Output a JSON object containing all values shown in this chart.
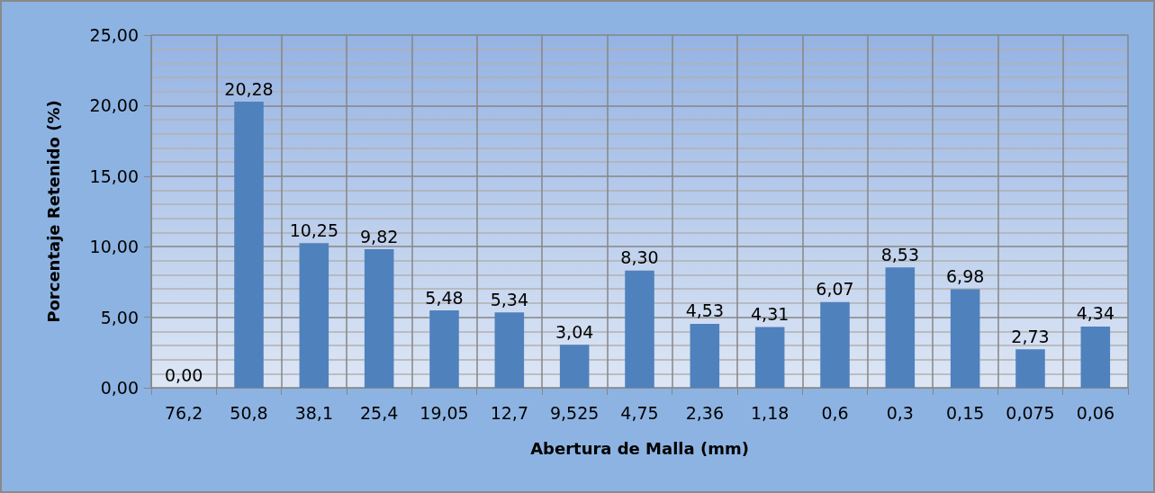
{
  "chart_data": {
    "type": "bar",
    "xlabel": "Abertura de Malla (mm)",
    "ylabel": "Porcentaje Retenido (%)",
    "categories": [
      "76,2",
      "50,8",
      "38,1",
      "25,4",
      "19,05",
      "12,7",
      "9,525",
      "4,75",
      "2,36",
      "1,18",
      "0,6",
      "0,3",
      "0,15",
      "0,075",
      "0,06"
    ],
    "values": [
      0,
      20.28,
      10.25,
      9.82,
      5.48,
      5.34,
      3.04,
      8.3,
      4.53,
      4.31,
      6.07,
      8.53,
      6.98,
      2.73,
      4.34
    ],
    "value_labels": [
      "0,00",
      "20,28",
      "10,25",
      "9,82",
      "5,48",
      "5,34",
      "3,04",
      "8,30",
      "4,53",
      "4,31",
      "6,07",
      "8,53",
      "6,98",
      "2,73",
      "4,34"
    ],
    "color": "#4f81bd",
    "ylim": [
      0,
      25
    ],
    "yticks": [
      {
        "value": 0,
        "label": "0,00"
      },
      {
        "value": 5,
        "label": "5,00"
      },
      {
        "value": 10,
        "label": "10,00"
      },
      {
        "value": 15,
        "label": "15,00"
      },
      {
        "value": 20,
        "label": "20,00"
      },
      {
        "value": 25,
        "label": "25,00"
      }
    ],
    "grid": true
  }
}
